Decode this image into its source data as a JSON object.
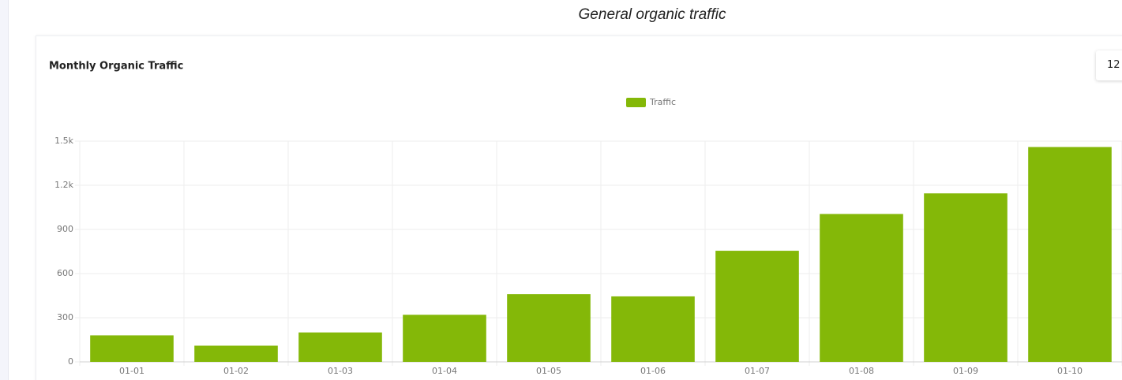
{
  "heading": "General organic traffic",
  "range_button": "12",
  "chart_data": {
    "type": "bar",
    "title": "Monthly Organic Traffic",
    "categories": [
      "01-01",
      "01-02",
      "01-03",
      "01-04",
      "01-05",
      "01-06",
      "01-07",
      "01-08",
      "01-09",
      "01-10"
    ],
    "series": [
      {
        "name": "Traffic",
        "color": "#84b808",
        "values": [
          180,
          110,
          200,
          320,
          460,
          445,
          755,
          1005,
          1145,
          1460
        ]
      }
    ],
    "ylim": [
      0,
      1500
    ],
    "yticks": [
      0,
      300,
      600,
      900,
      {
        "value": 1200,
        "label": "1.2k"
      },
      {
        "value": 1500,
        "label": "1.5k"
      }
    ],
    "grid": true,
    "legend": "top"
  }
}
